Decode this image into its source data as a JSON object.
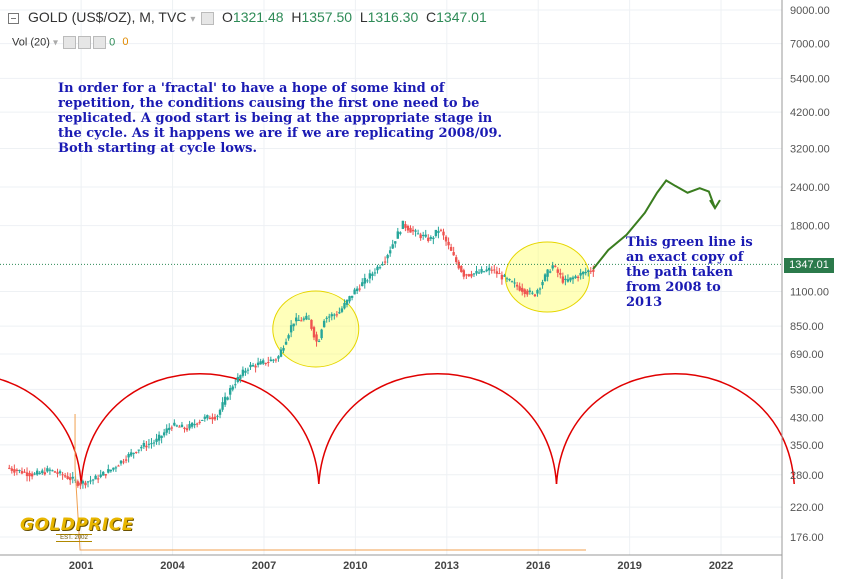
{
  "header": {
    "symbol": "GOLD (US$/OZ), M, TVC",
    "open_label": "O",
    "open": "1321.48",
    "high_label": "H",
    "high": "1357.50",
    "low_label": "L",
    "low": "1316.30",
    "close_label": "C",
    "close": "1347.01",
    "indicator": "Vol (20)",
    "vol_value_a": "0",
    "vol_value_b": "0"
  },
  "annotations": {
    "top_note": "In order for a 'fractal' to have a hope of some kind of\nrepetition, the conditions causing the first one need to be\nreplicated. A good start is being at the appropriate stage in\nthe cycle. As it happens we are if we are replicating 2008/09.\nBoth starting at cycle lows.",
    "green_note": "This green line is\nan exact copy of\nthe path taken\nfrom 2008 to\n2013"
  },
  "current_price_label": "1347.01",
  "logo": {
    "main": "GOLDPRICE",
    "sub": "EST. 2002"
  },
  "colors": {
    "up": "#26a69a",
    "down": "#ef5350",
    "projection": "#3a7d1f",
    "cycle_arcs": "#e00000",
    "highlight": "#ffff66",
    "note_text": "#1a1ab3",
    "price_line": "#2e8b57"
  },
  "chart_data": {
    "type": "candlestick",
    "y_scale": "log",
    "y_ticks": [
      "9000.00",
      "7000.00",
      "5400.00",
      "4200.00",
      "3200.00",
      "2400.00",
      "1800.00",
      "1347.01",
      "1100.00",
      "850.00",
      "690.00",
      "530.00",
      "430.00",
      "350.00",
      "280.00",
      "220.00",
      "176.00"
    ],
    "x_ticks": [
      "2001",
      "2004",
      "2007",
      "2010",
      "2013",
      "2016",
      "2019",
      "2022"
    ],
    "price_path": [
      {
        "x": 1998.6,
        "y": 295
      },
      {
        "x": 1999.5,
        "y": 280
      },
      {
        "x": 2000.0,
        "y": 290
      },
      {
        "x": 2000.6,
        "y": 275
      },
      {
        "x": 2001.0,
        "y": 262
      },
      {
        "x": 2001.5,
        "y": 272
      },
      {
        "x": 2002.0,
        "y": 290
      },
      {
        "x": 2002.5,
        "y": 318
      },
      {
        "x": 2003.0,
        "y": 345
      },
      {
        "x": 2003.5,
        "y": 360
      },
      {
        "x": 2004.0,
        "y": 405
      },
      {
        "x": 2004.5,
        "y": 395
      },
      {
        "x": 2005.0,
        "y": 425
      },
      {
        "x": 2005.5,
        "y": 435
      },
      {
        "x": 2006.0,
        "y": 545
      },
      {
        "x": 2006.5,
        "y": 625
      },
      {
        "x": 2007.0,
        "y": 645
      },
      {
        "x": 2007.5,
        "y": 670
      },
      {
        "x": 2008.0,
        "y": 880
      },
      {
        "x": 2008.5,
        "y": 900
      },
      {
        "x": 2008.8,
        "y": 740
      },
      {
        "x": 2009.0,
        "y": 900
      },
      {
        "x": 2009.5,
        "y": 940
      },
      {
        "x": 2010.0,
        "y": 1100
      },
      {
        "x": 2010.5,
        "y": 1230
      },
      {
        "x": 2011.0,
        "y": 1400
      },
      {
        "x": 2011.6,
        "y": 1820
      },
      {
        "x": 2012.0,
        "y": 1700
      },
      {
        "x": 2012.5,
        "y": 1620
      },
      {
        "x": 2012.8,
        "y": 1760
      },
      {
        "x": 2013.3,
        "y": 1400
      },
      {
        "x": 2013.6,
        "y": 1250
      },
      {
        "x": 2014.0,
        "y": 1260
      },
      {
        "x": 2014.5,
        "y": 1300
      },
      {
        "x": 2015.0,
        "y": 1200
      },
      {
        "x": 2015.5,
        "y": 1120
      },
      {
        "x": 2015.9,
        "y": 1070
      },
      {
        "x": 2016.5,
        "y": 1340
      },
      {
        "x": 2016.9,
        "y": 1180
      },
      {
        "x": 2017.5,
        "y": 1260
      },
      {
        "x": 2017.8,
        "y": 1300
      }
    ],
    "projection": [
      {
        "x": 2017.8,
        "y": 1300
      },
      {
        "x": 2018.3,
        "y": 1500
      },
      {
        "x": 2018.9,
        "y": 1680
      },
      {
        "x": 2019.5,
        "y": 1980
      },
      {
        "x": 2019.9,
        "y": 2300
      },
      {
        "x": 2020.2,
        "y": 2520
      },
      {
        "x": 2020.5,
        "y": 2420
      },
      {
        "x": 2020.9,
        "y": 2300
      },
      {
        "x": 2021.3,
        "y": 2380
      },
      {
        "x": 2021.6,
        "y": 2320
      },
      {
        "x": 2021.8,
        "y": 2050
      }
    ],
    "cycle_lows": [
      "2001",
      "2008.8",
      "2016.6"
    ],
    "highlight_years": [
      "2008.8",
      "2016.3"
    ]
  }
}
